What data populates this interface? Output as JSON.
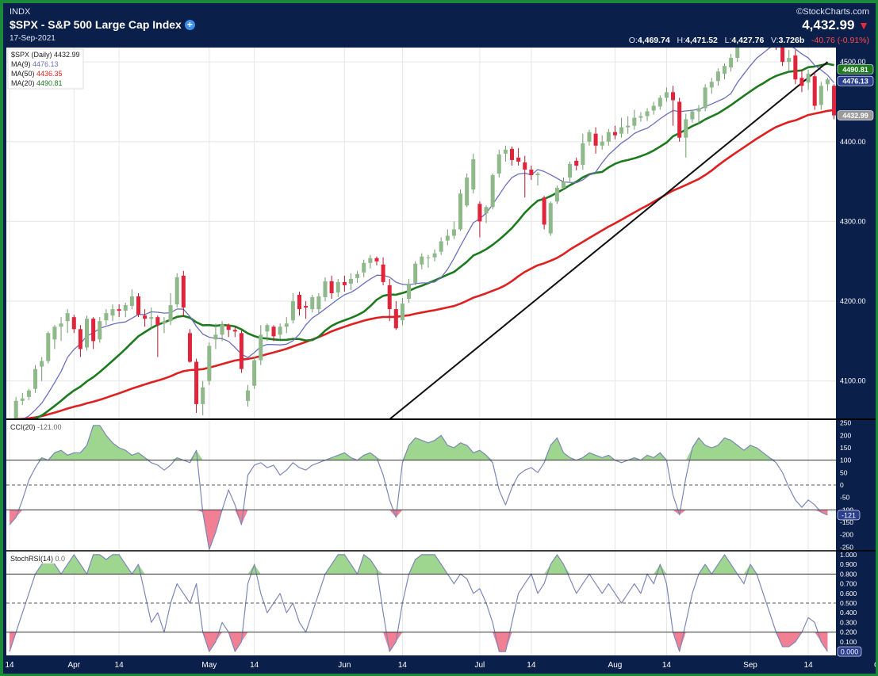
{
  "header": {
    "exchange": "INDX",
    "title": "$SPX - S&P 500 Large Cap Index",
    "date": "17-Sep-2021",
    "brand": "©StockCharts.com",
    "last": "4,432.99",
    "open_label": "O:",
    "open": "4,469.74",
    "high_label": "H:",
    "high": "4,471.52",
    "low_label": "L:",
    "low": "4,427.76",
    "vol_label": "V:",
    "volume": "3.726b",
    "change": "-40.76 (-0.91%)"
  },
  "colors": {
    "background": "#0b1f4b",
    "up_candle": "#8fb98a",
    "down_candle": "#e0243c",
    "ma9": "#6c6fbd",
    "ma50": "#dd2020",
    "ma20": "#1e7a1e",
    "trendline": "#111111",
    "indicator_line": "#7d87b8",
    "overbought_fill": "#9ed58f",
    "oversold_fill": "#f28094"
  },
  "chart_data": [
    {
      "type": "candlestick",
      "legend": [
        {
          "label": "$SPX (Daily)",
          "value": "4432.99"
        },
        {
          "label": "MA(9)",
          "value": "4476.13"
        },
        {
          "label": "MA(50)",
          "value": "4436.35"
        },
        {
          "label": "MA(20)",
          "value": "4490.81"
        }
      ],
      "ylim": [
        4052,
        4518
      ],
      "yticks": [
        4100,
        4200,
        4300,
        4400,
        4500
      ],
      "ytick_labels": [
        "4100.00",
        "4200.00",
        "4300.00",
        "4400.00",
        "4500.00"
      ],
      "x_labels": [
        {
          "label": "14",
          "index": 0
        },
        {
          "label": "Apr",
          "index": 10
        },
        {
          "label": "14",
          "index": 17
        },
        {
          "label": "May",
          "index": 31
        },
        {
          "label": "14",
          "index": 38
        },
        {
          "label": "Jun",
          "index": 52
        },
        {
          "label": "14",
          "index": 61
        },
        {
          "label": "Jul",
          "index": 73
        },
        {
          "label": "14",
          "index": 81
        },
        {
          "label": "Aug",
          "index": 94
        },
        {
          "label": "14",
          "index": 102
        },
        {
          "label": "Sep",
          "index": 115
        },
        {
          "label": "14",
          "index": 124
        },
        {
          "label": "Oc",
          "index": 135
        }
      ],
      "price_badges": [
        {
          "label": "4490.81",
          "value": 4490.81,
          "color": "#1e7a1e"
        },
        {
          "label": "4476.13",
          "value": 4476.13,
          "color": "#2a3f8f"
        },
        {
          "label": "4432.99",
          "value": 4432.99,
          "color": "#9a9a9a"
        }
      ],
      "trendline": {
        "from": [
          59,
          4052
        ],
        "to": [
          127,
          4500
        ]
      },
      "ma_start": {
        "ma9": 4048,
        "ma20": 4045,
        "ma50": 4052
      },
      "ohlc": [
        [
          4040,
          4043,
          4012,
          4025
        ],
        [
          4045,
          4080,
          4040,
          4075
        ],
        [
          4075,
          4085,
          4070,
          4078
        ],
        [
          4080,
          4090,
          4076,
          4088
        ],
        [
          4090,
          4120,
          4085,
          4115
        ],
        [
          4118,
          4130,
          4100,
          4125
        ],
        [
          4125,
          4162,
          4122,
          4160
        ],
        [
          4152,
          4170,
          4140,
          4168
        ],
        [
          4168,
          4180,
          4150,
          4172
        ],
        [
          4175,
          4190,
          4160,
          4185
        ],
        [
          4180,
          4183,
          4160,
          4165
        ],
        [
          4165,
          4170,
          4130,
          4140
        ],
        [
          4142,
          4182,
          4138,
          4178
        ],
        [
          4178,
          4180,
          4140,
          4150
        ],
        [
          4152,
          4180,
          4148,
          4175
        ],
        [
          4176,
          4190,
          4170,
          4185
        ],
        [
          4182,
          4196,
          4175,
          4190
        ],
        [
          4190,
          4196,
          4180,
          4188
        ],
        [
          4188,
          4198,
          4180,
          4195
        ],
        [
          4194,
          4215,
          4190,
          4206
        ],
        [
          4206,
          4210,
          4180,
          4183
        ],
        [
          4182,
          4190,
          4168,
          4178
        ],
        [
          4178,
          4192,
          4165,
          4180
        ],
        [
          4180,
          4182,
          4130,
          4170
        ],
        [
          4172,
          4180,
          4160,
          4175
        ],
        [
          4175,
          4210,
          4170,
          4195
        ],
        [
          4196,
          4235,
          4192,
          4230
        ],
        [
          4232,
          4238,
          4180,
          4192
        ],
        [
          4160,
          4165,
          4123,
          4124
        ],
        [
          4124,
          4128,
          4060,
          4071
        ],
        [
          4071,
          4100,
          4057,
          4092
        ],
        [
          4100,
          4148,
          4095,
          4144
        ],
        [
          4152,
          4172,
          4140,
          4158
        ],
        [
          4158,
          4175,
          4150,
          4171
        ],
        [
          4170,
          4172,
          4155,
          4164
        ],
        [
          4164,
          4168,
          4155,
          4162
        ],
        [
          4160,
          4163,
          4110,
          4115
        ],
        [
          4075,
          4095,
          4068,
          4088
        ],
        [
          4094,
          4130,
          4090,
          4126
        ],
        [
          4126,
          4170,
          4120,
          4158
        ],
        [
          4162,
          4172,
          4150,
          4170
        ],
        [
          4168,
          4170,
          4150,
          4156
        ],
        [
          4158,
          4172,
          4152,
          4168
        ],
        [
          4168,
          4180,
          4160,
          4172
        ],
        [
          4176,
          4210,
          4172,
          4200
        ],
        [
          4208,
          4212,
          4182,
          4190
        ],
        [
          4194,
          4200,
          4178,
          4192
        ],
        [
          4190,
          4208,
          4186,
          4205
        ],
        [
          4190,
          4210,
          4185,
          4206
        ],
        [
          4205,
          4230,
          4200,
          4225
        ],
        [
          4225,
          4232,
          4203,
          4210
        ],
        [
          4211,
          4228,
          4205,
          4224
        ],
        [
          4224,
          4232,
          4212,
          4220
        ],
        [
          4222,
          4235,
          4214,
          4228
        ],
        [
          4229,
          4238,
          4223,
          4234
        ],
        [
          4236,
          4252,
          4230,
          4248
        ],
        [
          4248,
          4258,
          4241,
          4254
        ],
        [
          4254,
          4256,
          4245,
          4250
        ],
        [
          4246,
          4255,
          4220,
          4224
        ],
        [
          4220,
          4228,
          4175,
          4190
        ],
        [
          4190,
          4200,
          4164,
          4166
        ],
        [
          4176,
          4204,
          4170,
          4197
        ],
        [
          4203,
          4228,
          4198,
          4222
        ],
        [
          4223,
          4250,
          4220,
          4247
        ],
        [
          4246,
          4260,
          4240,
          4256
        ],
        [
          4254,
          4258,
          4242,
          4255
        ],
        [
          4255,
          4265,
          4250,
          4260
        ],
        [
          4262,
          4280,
          4258,
          4275
        ],
        [
          4276,
          4290,
          4270,
          4282
        ],
        [
          4282,
          4300,
          4278,
          4290
        ],
        [
          4290,
          4340,
          4288,
          4335
        ],
        [
          4320,
          4360,
          4318,
          4355
        ],
        [
          4340,
          4385,
          4335,
          4378
        ],
        [
          4322,
          4325,
          4280,
          4300
        ],
        [
          4310,
          4320,
          4298,
          4318
        ],
        [
          4318,
          4360,
          4315,
          4358
        ],
        [
          4360,
          4390,
          4355,
          4384
        ],
        [
          4385,
          4395,
          4375,
          4390
        ],
        [
          4391,
          4394,
          4370,
          4377
        ],
        [
          4380,
          4392,
          4370,
          4375
        ],
        [
          4374,
          4382,
          4330,
          4365
        ],
        [
          4365,
          4370,
          4352,
          4358
        ],
        [
          4358,
          4362,
          4345,
          4360
        ],
        [
          4330,
          4332,
          4290,
          4296
        ],
        [
          4285,
          4325,
          4282,
          4323
        ],
        [
          4325,
          4345,
          4322,
          4342
        ],
        [
          4342,
          4355,
          4340,
          4350
        ],
        [
          4355,
          4375,
          4350,
          4372
        ],
        [
          4376,
          4380,
          4364,
          4370
        ],
        [
          4371,
          4410,
          4365,
          4398
        ],
        [
          4400,
          4415,
          4395,
          4412
        ],
        [
          4410,
          4418,
          4385,
          4395
        ],
        [
          4395,
          4408,
          4390,
          4400
        ],
        [
          4400,
          4416,
          4395,
          4412
        ],
        [
          4412,
          4420,
          4403,
          4408
        ],
        [
          4410,
          4430,
          4405,
          4418
        ],
        [
          4418,
          4432,
          4410,
          4420
        ],
        [
          4420,
          4440,
          4415,
          4430
        ],
        [
          4430,
          4437,
          4425,
          4432
        ],
        [
          4432,
          4442,
          4426,
          4438
        ],
        [
          4439,
          4450,
          4434,
          4445
        ],
        [
          4444,
          4458,
          4440,
          4455
        ],
        [
          4455,
          4468,
          4450,
          4462
        ],
        [
          4462,
          4470,
          4420,
          4452
        ],
        [
          4450,
          4455,
          4400,
          4405
        ],
        [
          4405,
          4435,
          4380,
          4428
        ],
        [
          4428,
          4440,
          4424,
          4438
        ],
        [
          4438,
          4446,
          4422,
          4442
        ],
        [
          4442,
          4472,
          4438,
          4468
        ],
        [
          4468,
          4480,
          4460,
          4475
        ],
        [
          4476,
          4492,
          4470,
          4488
        ],
        [
          4485,
          4498,
          4478,
          4495
        ],
        [
          4493,
          4510,
          4488,
          4505
        ],
        [
          4505,
          4532,
          4500,
          4528
        ],
        [
          4520,
          4530,
          4518,
          4526
        ],
        [
          4526,
          4537,
          4520,
          4530
        ],
        [
          4530,
          4540,
          4522,
          4528
        ],
        [
          4536,
          4540,
          4520,
          4524
        ],
        [
          4524,
          4540,
          4518,
          4535
        ],
        [
          4530,
          4535,
          4515,
          4520
        ],
        [
          4520,
          4522,
          4495,
          4500
        ],
        [
          4500,
          4515,
          4488,
          4505
        ],
        [
          4508,
          4515,
          4472,
          4478
        ],
        [
          4480,
          4490,
          4462,
          4470
        ],
        [
          4474,
          4490,
          4465,
          4485
        ],
        [
          4482,
          4488,
          4440,
          4445
        ],
        [
          4446,
          4475,
          4440,
          4470
        ],
        [
          4472,
          4480,
          4464,
          4478
        ],
        [
          4470,
          4472,
          4428,
          4433
        ]
      ]
    },
    {
      "type": "line",
      "legend": [
        {
          "label": "CCI(20)",
          "value": "-121.00"
        }
      ],
      "ylim": [
        -265,
        265
      ],
      "yticks": [
        250,
        200,
        150,
        100,
        50,
        0,
        -50,
        -100,
        -150,
        -200,
        -250
      ],
      "ytick_labels": [
        "250",
        "200",
        "150",
        "100",
        "50",
        "0",
        "-50",
        "-100",
        "-150",
        "-200",
        "-250"
      ],
      "levels": {
        "upper": 100,
        "zero": 0,
        "lower": -100
      },
      "badge": {
        "label": "-121",
        "value": -121
      },
      "values": [
        -160,
        -130,
        -60,
        20,
        70,
        110,
        100,
        130,
        140,
        120,
        130,
        130,
        160,
        240,
        240,
        200,
        170,
        150,
        140,
        120,
        130,
        110,
        90,
        80,
        60,
        80,
        110,
        100,
        90,
        140,
        -110,
        -260,
        -190,
        -100,
        -20,
        -80,
        -160,
        40,
        80,
        90,
        70,
        80,
        40,
        60,
        90,
        70,
        60,
        80,
        90,
        100,
        110,
        120,
        130,
        110,
        100,
        120,
        130,
        110,
        40,
        -60,
        -130,
        90,
        160,
        190,
        180,
        170,
        180,
        200,
        160,
        150,
        170,
        160,
        130,
        140,
        120,
        90,
        -20,
        -80,
        -10,
        40,
        60,
        70,
        50,
        90,
        160,
        190,
        130,
        110,
        100,
        110,
        130,
        120,
        110,
        120,
        100,
        90,
        100,
        110,
        100,
        120,
        110,
        130,
        100,
        -40,
        -120,
        30,
        150,
        190,
        160,
        150,
        160,
        190,
        180,
        160,
        140,
        160,
        150,
        130,
        110,
        90,
        50,
        -10,
        -60,
        -90,
        -60,
        -80,
        -110,
        -121
      ]
    },
    {
      "type": "line",
      "legend": [
        {
          "label": "StochRSI(14)",
          "value": "0.0"
        }
      ],
      "ylim": [
        -0.04,
        1.04
      ],
      "yticks": [
        1.0,
        0.9,
        0.8,
        0.7,
        0.6,
        0.5,
        0.4,
        0.3,
        0.2,
        0.1,
        0.0
      ],
      "ytick_labels": [
        "1.000",
        "0.900",
        "0.800",
        "0.700",
        "0.600",
        "0.500",
        "0.400",
        "0.300",
        "0.200",
        "0.100",
        "0.000"
      ],
      "levels": {
        "upper": 0.8,
        "mid": 0.5,
        "lower": 0.2
      },
      "badge": {
        "label": "0.000",
        "value": 0.0
      },
      "values": [
        0.0,
        0.2,
        0.4,
        0.6,
        0.8,
        0.9,
        1.0,
        0.9,
        0.8,
        0.9,
        1.0,
        0.9,
        0.8,
        1.0,
        1.0,
        0.95,
        1.0,
        1.0,
        0.9,
        0.8,
        0.9,
        0.6,
        0.3,
        0.4,
        0.2,
        0.5,
        0.7,
        0.6,
        0.5,
        0.7,
        0.2,
        0.0,
        0.1,
        0.3,
        0.2,
        0.0,
        0.1,
        0.7,
        0.9,
        0.6,
        0.4,
        0.5,
        0.6,
        0.4,
        0.5,
        0.3,
        0.2,
        0.4,
        0.6,
        0.8,
        0.9,
        1.0,
        1.0,
        0.9,
        0.8,
        1.0,
        0.95,
        0.85,
        0.4,
        0.0,
        0.1,
        0.5,
        0.8,
        0.95,
        1.0,
        1.0,
        1.0,
        0.9,
        0.8,
        0.7,
        0.8,
        0.75,
        0.6,
        0.65,
        0.5,
        0.3,
        0.0,
        0.0,
        0.3,
        0.6,
        0.7,
        0.8,
        0.6,
        0.7,
        0.9,
        1.0,
        0.9,
        0.75,
        0.6,
        0.7,
        0.8,
        0.7,
        0.6,
        0.7,
        0.6,
        0.5,
        0.6,
        0.7,
        0.6,
        0.8,
        0.7,
        0.9,
        0.7,
        0.2,
        0.0,
        0.3,
        0.6,
        0.8,
        0.9,
        0.8,
        0.9,
        1.0,
        0.9,
        0.8,
        0.7,
        0.9,
        0.8,
        0.6,
        0.4,
        0.2,
        0.05,
        0.05,
        0.1,
        0.2,
        0.35,
        0.3,
        0.1,
        0.0
      ]
    }
  ]
}
